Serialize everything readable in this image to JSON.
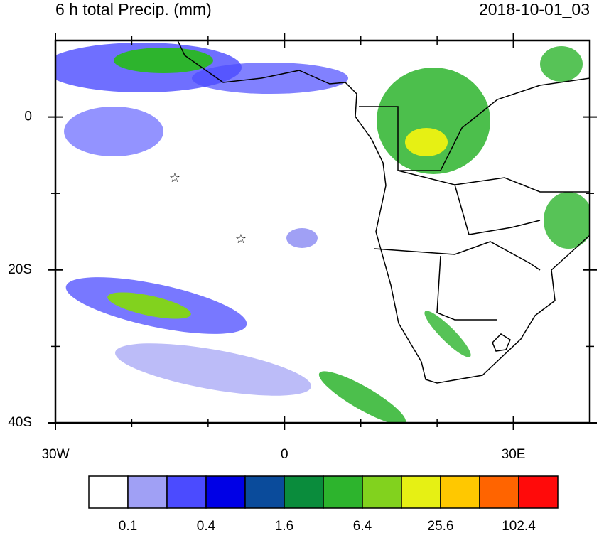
{
  "map": {
    "title": "6 h total Precip. (mm)",
    "timestamp": "2018-10-01_03",
    "lonlim": [
      -30,
      40
    ],
    "latlim": [
      -40,
      10
    ],
    "lon_ticks": [
      {
        "value": -30,
        "label": "30W"
      },
      0,
      {
        "value": 30,
        "label": "30E"
      }
    ],
    "lat_ticks": [
      0,
      {
        "value": -20,
        "label": "20S"
      },
      {
        "value": -40,
        "label": "40S"
      }
    ],
    "lon_minor_ticks": [
      -20,
      -10,
      10,
      20
    ],
    "lat_minor_ticks": [
      -10,
      -30
    ],
    "colorbar": {
      "levels": [
        0.1,
        0.4,
        1.6,
        6.4,
        25.6,
        102.4
      ],
      "colors": [
        "#ffffff",
        "#a0a0f5",
        "#4b4bff",
        "#0000e6",
        "#0a4b9b",
        "#0a8c3c",
        "#2db42d",
        "#82d21e",
        "#e6f014",
        "#ffc800",
        "#ff6400",
        "#ff0a0a"
      ]
    }
  }
}
